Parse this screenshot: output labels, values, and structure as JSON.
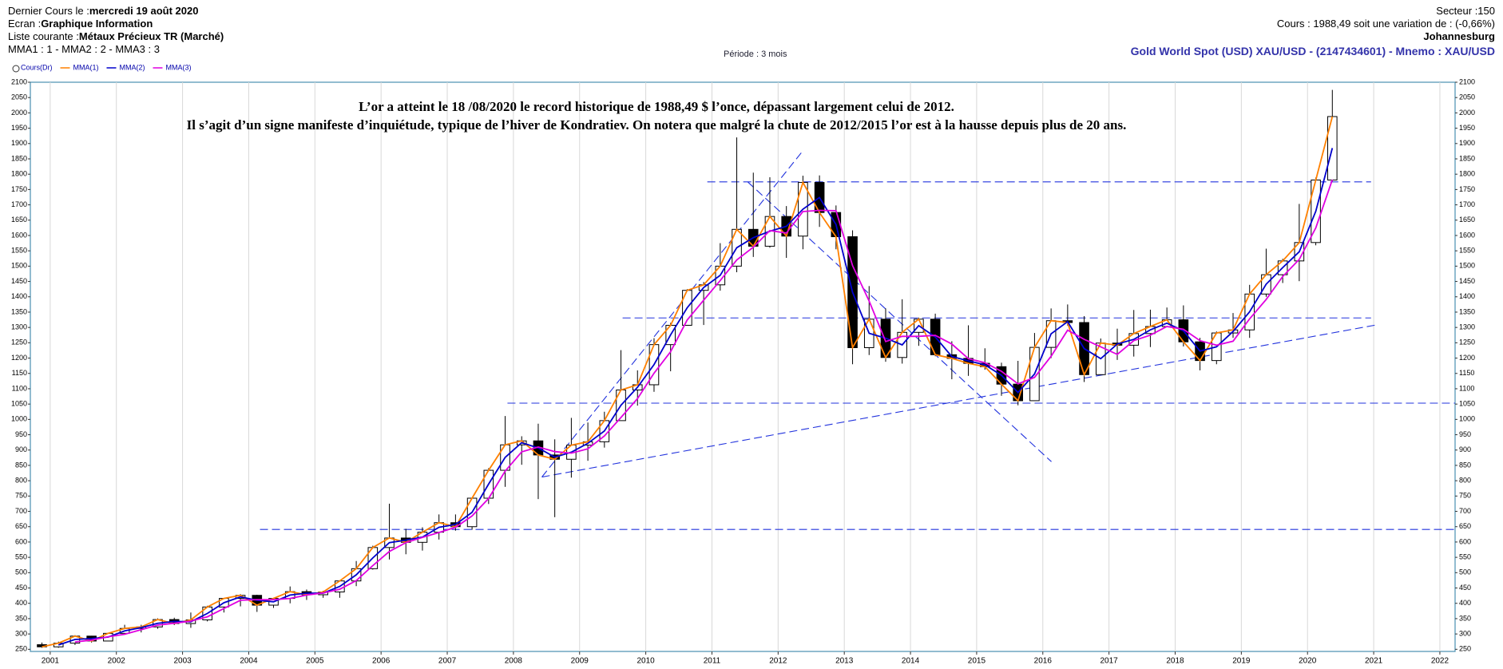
{
  "header": {
    "lines": [
      {
        "label": "Dernier Cours le :",
        "value": "mercredi 19 août 2020"
      },
      {
        "label": "Ecran :",
        "value": "Graphique Information"
      },
      {
        "label": "Liste courante :",
        "value": "Métaux Précieux TR (Marché)"
      },
      {
        "label": "MMA1 : 1 - MMA2 : 2 - MMA3 : 3",
        "value": null
      }
    ],
    "period": "Période : 3 mois",
    "sector": "Secteur :150",
    "quote": "Cours : 1988,49 soit une variation de : (-0,66%)",
    "place": "Johannesburg",
    "instrument": "Gold World Spot (USD) XAU/USD - (2147434601) - Mnemo : XAU/USD"
  },
  "chart_data": {
    "type": "candlestick",
    "candle_name": "Cours(Dr)",
    "annotation": [
      "L’or a atteint le 18 /08/2020 le record historique de 1988,49 $ l’once, dépassant largement celui de 2012.",
      "Il s’agit d’un signe manifeste d’inquiétude, typique de l’hiver de Kondratiev. On notera que malgré la chute de 2012/2015 l’or est à la hausse depuis plus de 20 ans."
    ],
    "xlim": [
      2000.7,
      2022.23
    ],
    "ylim": [
      243,
      2100
    ],
    "grid": "x",
    "xticks": [
      2001,
      2002,
      2003,
      2004,
      2005,
      2006,
      2007,
      2008,
      2009,
      2010,
      2011,
      2012,
      2013,
      2014,
      2015,
      2016,
      2017,
      2018,
      2019,
      2020,
      2021,
      2022
    ],
    "yticks": [
      250,
      300,
      350,
      400,
      450,
      500,
      550,
      600,
      650,
      700,
      750,
      800,
      850,
      900,
      950,
      1000,
      1050,
      1100,
      1150,
      1200,
      1250,
      1300,
      1350,
      1400,
      1450,
      1500,
      1550,
      1600,
      1650,
      1700,
      1750,
      1800,
      1850,
      1900,
      1950,
      2000,
      2050,
      2100
    ],
    "x": [
      2000.875,
      2001.125,
      2001.375,
      2001.625,
      2001.875,
      2002.125,
      2002.375,
      2002.625,
      2002.875,
      2003.125,
      2003.375,
      2003.625,
      2003.875,
      2004.125,
      2004.375,
      2004.625,
      2004.875,
      2005.125,
      2005.375,
      2005.625,
      2005.875,
      2006.125,
      2006.375,
      2006.625,
      2006.875,
      2007.125,
      2007.375,
      2007.625,
      2007.875,
      2008.125,
      2008.375,
      2008.625,
      2008.875,
      2009.125,
      2009.375,
      2009.625,
      2009.875,
      2010.125,
      2010.375,
      2010.625,
      2010.875,
      2011.125,
      2011.375,
      2011.625,
      2011.875,
      2012.125,
      2012.375,
      2012.625,
      2012.875,
      2013.125,
      2013.375,
      2013.625,
      2013.875,
      2014.125,
      2014.375,
      2014.625,
      2014.875,
      2015.125,
      2015.375,
      2015.625,
      2015.875,
      2016.125,
      2016.375,
      2016.625,
      2016.875,
      2017.125,
      2017.375,
      2017.625,
      2017.875,
      2018.125,
      2018.375,
      2018.625,
      2018.875,
      2019.125,
      2019.375,
      2019.625,
      2019.875,
      2020.125,
      2020.375
    ],
    "open": [
      265,
      258,
      270,
      293,
      277,
      302,
      318,
      323,
      347,
      334,
      346,
      388,
      416,
      426,
      394,
      416,
      438,
      428,
      437,
      473,
      513,
      582,
      613,
      599,
      632,
      663,
      650,
      743,
      834,
      917,
      930,
      884,
      870,
      916,
      927,
      996,
      1096,
      1113,
      1244,
      1307,
      1421,
      1439,
      1500,
      1620,
      1565,
      1662,
      1598,
      1773,
      1675,
      1596,
      1234,
      1327,
      1202,
      1284,
      1327,
      1211,
      1199,
      1183,
      1172,
      1115,
      1061,
      1235,
      1322,
      1316,
      1146,
      1249,
      1242,
      1280,
      1303,
      1325,
      1253,
      1192,
      1282,
      1292,
      1409,
      1472,
      1517,
      1577,
      1781
    ],
    "high": [
      272,
      275,
      296,
      294,
      304,
      330,
      330,
      351,
      353,
      370,
      392,
      417,
      430,
      428,
      418,
      455,
      445,
      441,
      475,
      538,
      588,
      725,
      643,
      648,
      690,
      690,
      745,
      841,
      1011,
      945,
      986,
      935,
      1005,
      990,
      1025,
      1226,
      1160,
      1265,
      1315,
      1425,
      1448,
      1575,
      1920,
      1805,
      1790,
      1696,
      1795,
      1796,
      1698,
      1617,
      1435,
      1362,
      1392,
      1332,
      1345,
      1255,
      1307,
      1232,
      1185,
      1191,
      1282,
      1362,
      1375,
      1337,
      1264,
      1296,
      1357,
      1358,
      1365,
      1372,
      1266,
      1287,
      1347,
      1439,
      1557,
      1524,
      1703,
      1789,
      2075
    ],
    "low": [
      255,
      255,
      264,
      272,
      277,
      300,
      305,
      317,
      329,
      320,
      341,
      370,
      390,
      372,
      385,
      400,
      411,
      418,
      418,
      456,
      510,
      543,
      560,
      572,
      608,
      637,
      640,
      724,
      780,
      852,
      740,
      681,
      810,
      865,
      908,
      1003,
      1045,
      1090,
      1157,
      1310,
      1308,
      1420,
      1480,
      1530,
      1560,
      1527,
      1555,
      1628,
      1555,
      1180,
      1210,
      1188,
      1182,
      1240,
      1206,
      1131,
      1142,
      1162,
      1077,
      1046,
      1061,
      1200,
      1306,
      1122,
      1146,
      1194,
      1205,
      1236,
      1302,
      1238,
      1160,
      1180,
      1266,
      1266,
      1400,
      1445,
      1451,
      1568,
      1776
    ],
    "close": [
      258,
      270,
      293,
      277,
      302,
      318,
      323,
      347,
      334,
      346,
      388,
      416,
      426,
      394,
      416,
      438,
      428,
      437,
      473,
      513,
      582,
      613,
      599,
      632,
      663,
      650,
      743,
      834,
      917,
      930,
      884,
      870,
      916,
      927,
      996,
      1096,
      1113,
      1244,
      1307,
      1421,
      1439,
      1500,
      1620,
      1565,
      1662,
      1598,
      1773,
      1675,
      1596,
      1234,
      1327,
      1202,
      1284,
      1327,
      1211,
      1199,
      1183,
      1172,
      1115,
      1061,
      1235,
      1322,
      1316,
      1146,
      1249,
      1242,
      1280,
      1303,
      1325,
      1253,
      1192,
      1282,
      1292,
      1409,
      1472,
      1517,
      1577,
      1781,
      1988
    ],
    "series": [
      {
        "name": "MMA(1)",
        "color": "#ff8000",
        "values": [
          258,
          270,
          293,
          277,
          302,
          318,
          323,
          347,
          334,
          346,
          388,
          416,
          426,
          394,
          416,
          438,
          428,
          437,
          473,
          513,
          582,
          613,
          599,
          632,
          663,
          650,
          743,
          834,
          917,
          930,
          884,
          870,
          916,
          927,
          996,
          1096,
          1113,
          1244,
          1307,
          1421,
          1439,
          1500,
          1620,
          1565,
          1662,
          1598,
          1773,
          1675,
          1596,
          1234,
          1327,
          1202,
          1284,
          1327,
          1211,
          1199,
          1183,
          1172,
          1115,
          1061,
          1235,
          1322,
          1316,
          1146,
          1249,
          1242,
          1280,
          1303,
          1325,
          1253,
          1192,
          1282,
          1292,
          1409,
          1472,
          1517,
          1577,
          1781,
          1988
        ]
      },
      {
        "name": "MMA(2)",
        "color": "#0000cc",
        "values": [
          null,
          264,
          282,
          285,
          290,
          310,
          321,
          335,
          341,
          340,
          367,
          402,
          421,
          410,
          405,
          427,
          433,
          433,
          455,
          493,
          548,
          598,
          606,
          616,
          648,
          657,
          697,
          789,
          876,
          924,
          907,
          877,
          893,
          922,
          962,
          1046,
          1105,
          1179,
          1276,
          1364,
          1430,
          1470,
          1560,
          1593,
          1614,
          1630,
          1686,
          1724,
          1636,
          1415,
          1281,
          1265,
          1243,
          1306,
          1269,
          1205,
          1191,
          1178,
          1144,
          1088,
          1148,
          1279,
          1319,
          1231,
          1198,
          1246,
          1261,
          1292,
          1314,
          1289,
          1223,
          1237,
          1287,
          1351,
          1441,
          1495,
          1547,
          1679,
          1885
        ]
      },
      {
        "name": "MMA(3)",
        "color": "#e000e0",
        "values": [
          null,
          null,
          274,
          280,
          291,
          299,
          314,
          329,
          335,
          342,
          356,
          383,
          410,
          412,
          412,
          416,
          427,
          434,
          446,
          474,
          523,
          569,
          598,
          615,
          631,
          648,
          685,
          742,
          831,
          894,
          910,
          895,
          890,
          904,
          946,
          1006,
          1068,
          1151,
          1221,
          1324,
          1389,
          1453,
          1520,
          1562,
          1616,
          1608,
          1678,
          1682,
          1681,
          1502,
          1386,
          1254,
          1271,
          1271,
          1274,
          1246,
          1198,
          1185,
          1157,
          1116,
          1137,
          1206,
          1291,
          1261,
          1237,
          1212,
          1257,
          1275,
          1303,
          1294,
          1257,
          1242,
          1255,
          1328,
          1391,
          1466,
          1522,
          1625,
          1782
        ]
      }
    ],
    "trendline_color": "#2233dd",
    "trendlines": [
      {
        "x": [
          2004.17,
          2022.23
        ],
        "y": [
          641,
          641
        ]
      },
      {
        "x": [
          2007.91,
          2022.23
        ],
        "y": [
          1053,
          1053
        ]
      },
      {
        "x": [
          2009.65,
          2020.96
        ],
        "y": [
          1331,
          1331
        ]
      },
      {
        "x": [
          2010.93,
          2020.96
        ],
        "y": [
          1775,
          1775
        ]
      },
      {
        "x": [
          2008.43,
          2021.06
        ],
        "y": [
          812,
          1309
        ]
      },
      {
        "x": [
          2008.43,
          2012.38
        ],
        "y": [
          812,
          1878
        ]
      },
      {
        "x": [
          2011.54,
          2016.13
        ],
        "y": [
          1775,
          862
        ]
      }
    ]
  }
}
